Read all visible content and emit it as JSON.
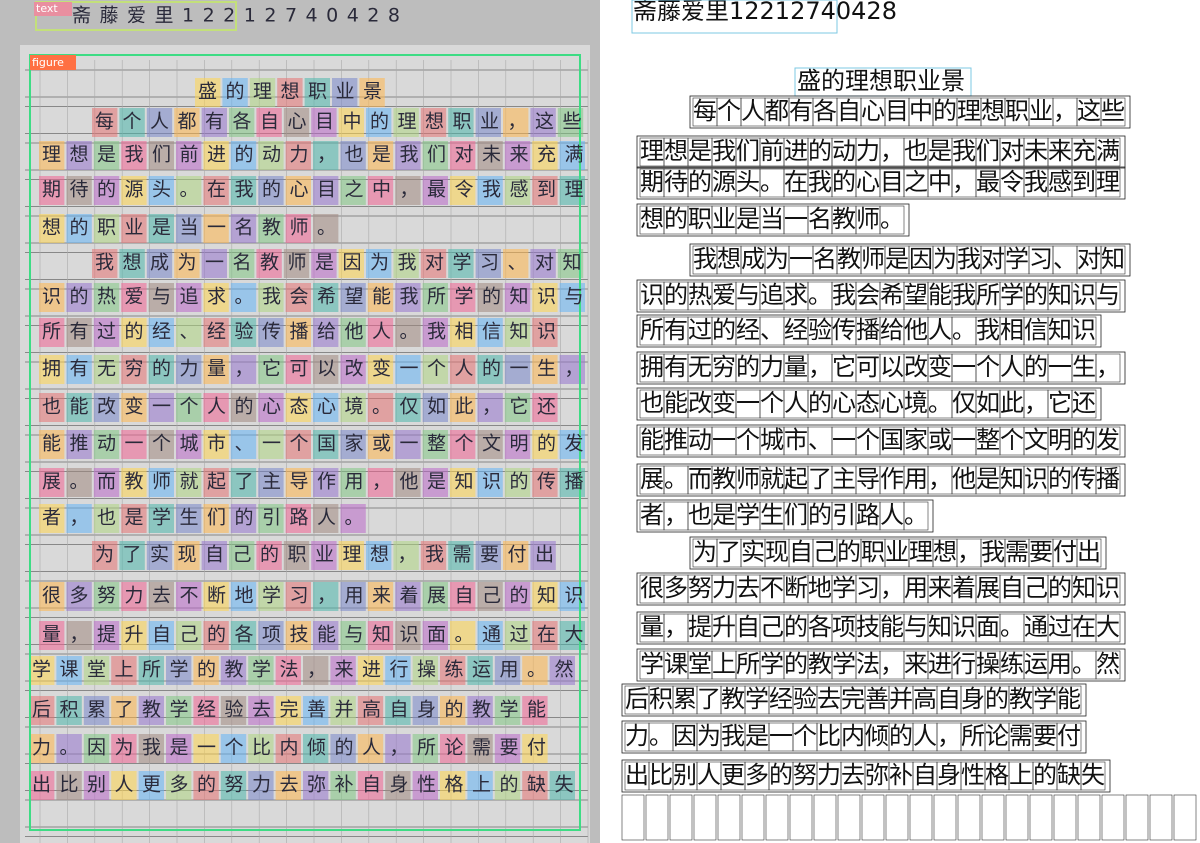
{
  "labels": {
    "text": "text",
    "figure": "figure"
  },
  "header": "斋藤爱里12212740428",
  "title": "盛的理想职业景",
  "lines": [
    "每个人都有各自心目中的理想职业，这些",
    "理想是我们前进的动力，也是我们对未来充满",
    "期待的源头。在我的心目之中，最令我感到理",
    "想的职业是当一名教师。",
    "我想成为一名教师是因为我对学习、对知",
    "识的热爱与追求。我会希望能我所学的知识与",
    "所有过的经、经验传播给他人。我相信知识",
    "拥有无穷的力量，它可以改变一个人的一生，",
    "也能改变一个人的心态心境。仅如此，它还",
    "能推动一个城市、一个国家或一整个文明的发",
    "展。而教师就起了主导作用，他是知识的传播",
    "者，也是学生们的引路人。",
    "为了实现自己的职业理想，我需要付出",
    "很多努力去不断地学习，用来着展自己的知识",
    "量，提升自己的各项技能与知识面。通过在大",
    "学课堂上所学的教学法，来进行操练运用。然",
    "后积累了教学经验去完善并高自身的教学能",
    "力。因为我是一个比内倾的人，所论需要付",
    "出比别人更多的努力去弥补自身性格上的缺失"
  ]
}
